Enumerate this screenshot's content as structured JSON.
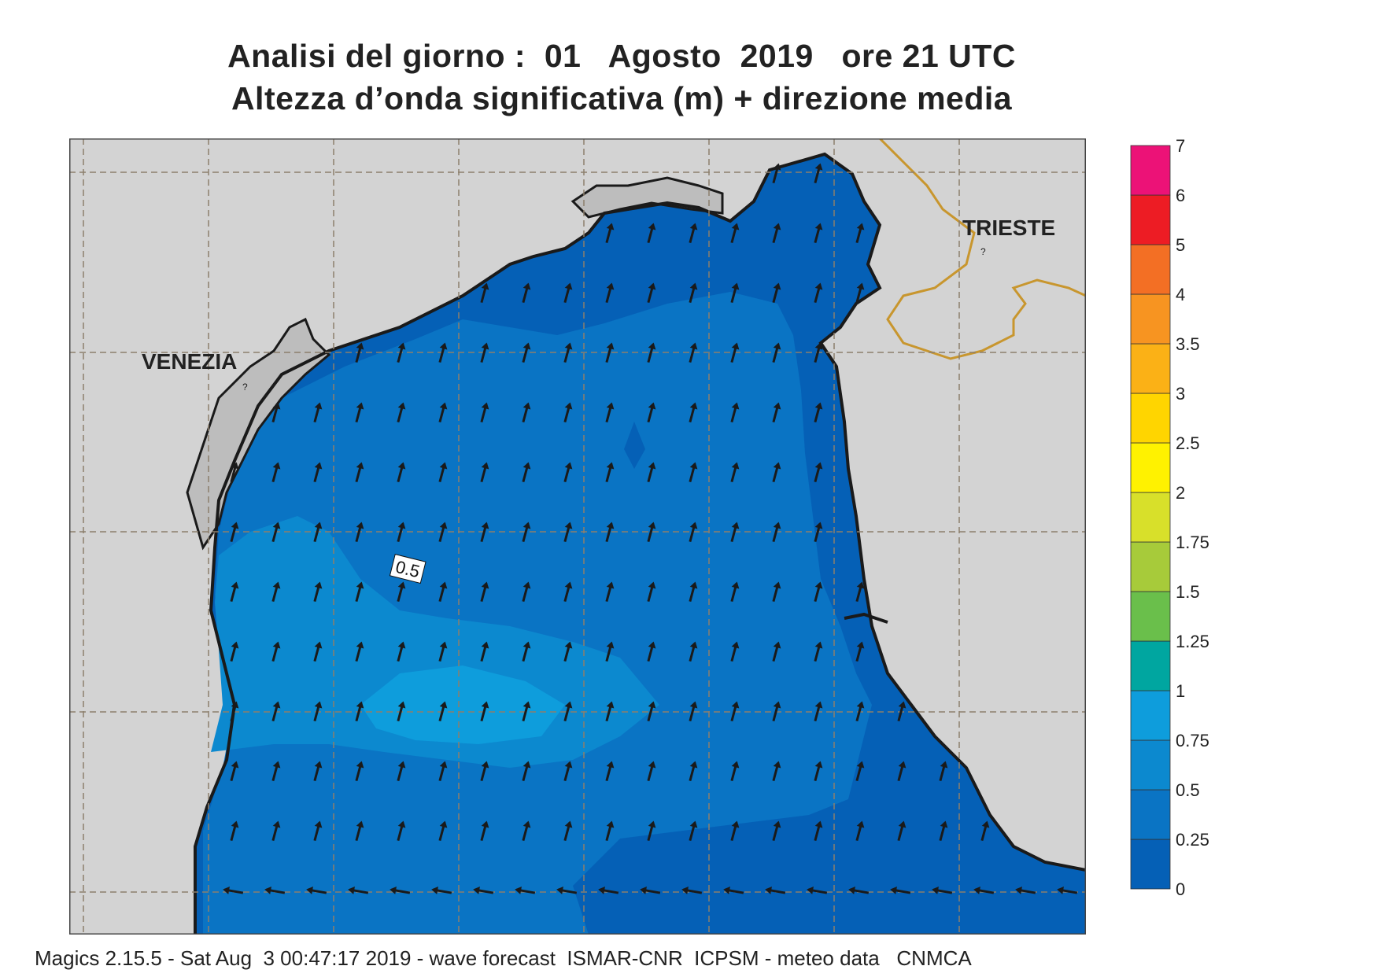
{
  "header": {
    "title_line1": "Analisi del giorno :  01   Agosto  2019   ore 21 UTC",
    "title_line2": "Altezza d’onda significativa (m) + direzione media"
  },
  "map": {
    "cities": [
      {
        "id": "venezia",
        "label": "VENEZIA"
      },
      {
        "id": "trieste",
        "label": "TRIESTE"
      }
    ],
    "contour_label": "0.5",
    "colors": {
      "land": "#d3d3d3",
      "lagoon": "#c4c4c4",
      "coast": "#1a1a1a",
      "grid": "#8c7f6c",
      "border": "#c8962e",
      "arrow": "#1a1a1a"
    },
    "wave_direction": "south-southwest"
  },
  "legend": {
    "title": "",
    "levels": [
      {
        "label": "0",
        "color": "#0560b6"
      },
      {
        "label": "0.25",
        "color": "#0a74c4"
      },
      {
        "label": "0.5",
        "color": "#0c89cf"
      },
      {
        "label": "0.75",
        "color": "#0e9ddc"
      },
      {
        "label": "1",
        "color": "#00a6a0"
      },
      {
        "label": "1.25",
        "color": "#6abf4b"
      },
      {
        "label": "1.5",
        "color": "#a7cb3a"
      },
      {
        "label": "1.75",
        "color": "#d8e02a"
      },
      {
        "label": "2",
        "color": "#fff200"
      },
      {
        "label": "2.5",
        "color": "#ffd500"
      },
      {
        "label": "3",
        "color": "#fbb116"
      },
      {
        "label": "3.5",
        "color": "#f79421"
      },
      {
        "label": "4",
        "color": "#f36f24"
      },
      {
        "label": "5",
        "color": "#ed1c24"
      },
      {
        "label": "6",
        "color": "#ec1277"
      },
      {
        "label": "7",
        "color": ""
      }
    ]
  },
  "footer": {
    "text": "Magics 2.15.5 - Sat Aug  3 00:47:17 2019 - wave forecast  ISMAR-CNR  ICPSM - meteo data   CNMCA"
  }
}
